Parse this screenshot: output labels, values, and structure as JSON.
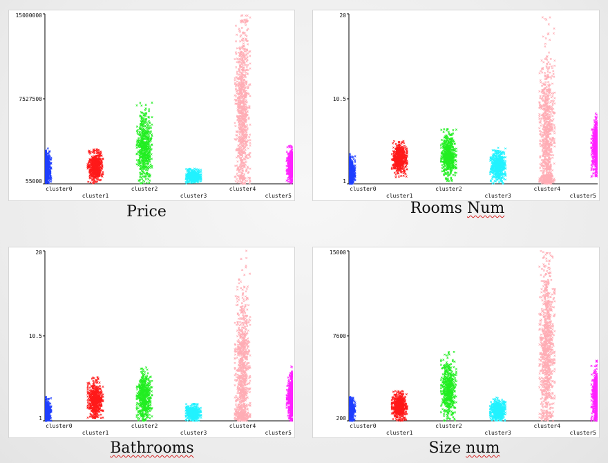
{
  "colors": {
    "cluster0": "#1f3fff",
    "cluster1": "#ff1a1a",
    "cluster2": "#22ee22",
    "cluster3": "#22f2ff",
    "cluster4": "#ffadb5",
    "cluster5": "#ff22ff"
  },
  "chart_data": [
    {
      "type": "scatter",
      "caption": "Price",
      "caption_parts": [
        "Price"
      ],
      "categories": [
        "cluster0",
        "cluster1",
        "cluster2",
        "cluster3",
        "cluster4",
        "cluster5"
      ],
      "yticks": [
        "55000",
        "7527500",
        "15000000"
      ],
      "ylim": [
        55000,
        15000000
      ],
      "series": [
        {
          "name": "cluster0",
          "min": 55000,
          "max": 3300000,
          "center": 1400000
        },
        {
          "name": "cluster1",
          "min": 55000,
          "max": 3100000,
          "center": 1600000
        },
        {
          "name": "cluster2",
          "min": 55000,
          "max": 7200000,
          "center": 3300000
        },
        {
          "name": "cluster3",
          "min": 55000,
          "max": 1400000,
          "center": 700000
        },
        {
          "name": "cluster4",
          "min": 55000,
          "max": 15000000,
          "center": 6500000
        },
        {
          "name": "cluster5",
          "min": 55000,
          "max": 3400000,
          "center": 1700000
        }
      ]
    },
    {
      "type": "scatter",
      "caption": "Rooms Num",
      "caption_parts": [
        "Rooms ",
        "Num"
      ],
      "categories": [
        "cluster0",
        "cluster1",
        "cluster2",
        "cluster3",
        "cluster4",
        "cluster5"
      ],
      "yticks": [
        "1",
        "10.5",
        "20"
      ],
      "ylim": [
        1,
        20
      ],
      "series": [
        {
          "name": "cluster0",
          "min": 1,
          "max": 4.5,
          "center": 2.3
        },
        {
          "name": "cluster1",
          "min": 1.7,
          "max": 5.8,
          "center": 3.8
        },
        {
          "name": "cluster2",
          "min": 1.3,
          "max": 7.2,
          "center": 4.2
        },
        {
          "name": "cluster3",
          "min": 1,
          "max": 5.1,
          "center": 3.0
        },
        {
          "name": "cluster4",
          "min": 1,
          "max": 20,
          "center": 5.5
        },
        {
          "name": "cluster5",
          "min": 1.8,
          "max": 9,
          "center": 4.8
        }
      ]
    },
    {
      "type": "scatter",
      "caption": "Bathrooms",
      "caption_parts": [
        "Bathrooms"
      ],
      "categories": [
        "cluster0",
        "cluster1",
        "cluster2",
        "cluster3",
        "cluster4",
        "cluster5"
      ],
      "yticks": [
        "1",
        "10.5",
        "20"
      ],
      "ylim": [
        1,
        20
      ],
      "series": [
        {
          "name": "cluster0",
          "min": 1,
          "max": 3.8,
          "center": 2.0
        },
        {
          "name": "cluster1",
          "min": 1.3,
          "max": 5.9,
          "center": 3.3
        },
        {
          "name": "cluster2",
          "min": 1,
          "max": 7.5,
          "center": 3.8
        },
        {
          "name": "cluster3",
          "min": 1,
          "max": 2.9,
          "center": 1.9
        },
        {
          "name": "cluster4",
          "min": 1,
          "max": 20,
          "center": 6.0
        },
        {
          "name": "cluster5",
          "min": 1,
          "max": 7.1,
          "center": 3.6
        }
      ]
    },
    {
      "type": "scatter",
      "caption": "Size num",
      "caption_parts": [
        "Size ",
        "num"
      ],
      "categories": [
        "cluster0",
        "cluster1",
        "cluster2",
        "cluster3",
        "cluster4",
        "cluster5"
      ],
      "yticks": [
        "200",
        "7600",
        "15000"
      ],
      "ylim": [
        200,
        15000
      ],
      "series": [
        {
          "name": "cluster0",
          "min": 200,
          "max": 2300,
          "center": 1200
        },
        {
          "name": "cluster1",
          "min": 200,
          "max": 2800,
          "center": 1500
        },
        {
          "name": "cluster2",
          "min": 200,
          "max": 6200,
          "center": 2900
        },
        {
          "name": "cluster3",
          "min": 200,
          "max": 2400,
          "center": 1100
        },
        {
          "name": "cluster4",
          "min": 200,
          "max": 15000,
          "center": 6500
        },
        {
          "name": "cluster5",
          "min": 200,
          "max": 5500,
          "center": 2300
        }
      ]
    }
  ]
}
